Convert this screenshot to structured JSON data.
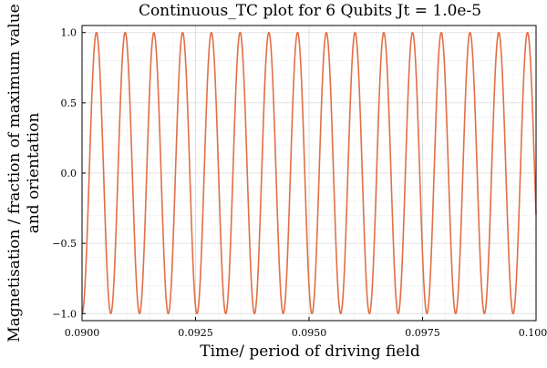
{
  "chart_data": {
    "type": "line",
    "title": "Continuous_TC plot for 6 Qubits Jt = 1.0e-5",
    "xlabel": "Time/ period of driving field",
    "ylabel_lines": [
      "Magnetisation / fraction of maximum value",
      "and orientation"
    ],
    "xlim": [
      0.09,
      0.1
    ],
    "ylim": [
      -1.05,
      1.05
    ],
    "x_ticks": [
      0.09,
      0.0925,
      0.095,
      0.0975,
      0.1
    ],
    "x_tick_labels": [
      "0.0900",
      "0.0925",
      "0.0950",
      "0.0975",
      "0.1000"
    ],
    "y_ticks": [
      -1.0,
      -0.5,
      0.0,
      0.5,
      1.0
    ],
    "y_tick_labels": [
      "−1.0",
      "−0.5",
      "0.0",
      "0.5",
      "1.0"
    ],
    "grid": true,
    "legend": "none",
    "series": [
      {
        "color": "#e26f46",
        "function": "-cos",
        "period": 0.000633,
        "amplitude": 1.0,
        "phase_origin": 0.09,
        "x_range": [
          0.09,
          0.1
        ],
        "peaks_at_max": [
          0.09032,
          0.09095,
          0.09158,
          0.09221,
          0.09285,
          0.09348,
          0.09411,
          0.09475,
          0.09538,
          0.09601,
          0.09665,
          0.09728,
          0.09791,
          0.09855,
          0.09918,
          0.09981
        ]
      }
    ]
  }
}
